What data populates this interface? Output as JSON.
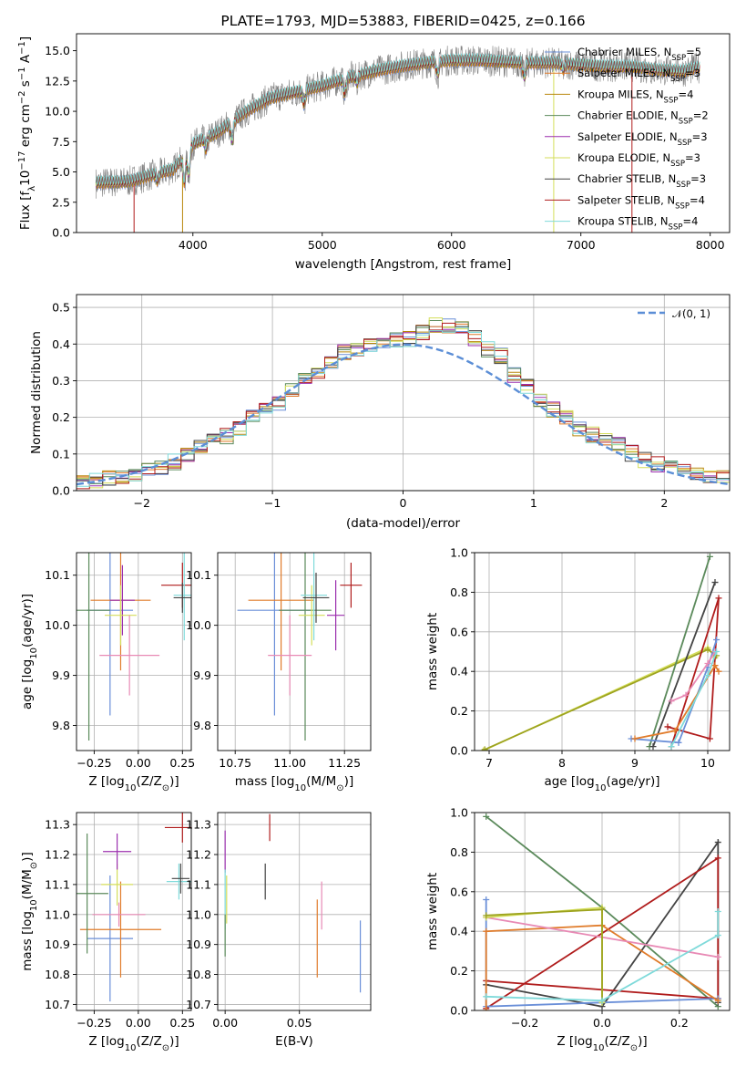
{
  "chart_data": [
    {
      "id": "spectrum",
      "type": "line",
      "title": "PLATE=1793, MJD=53883, FIBERID=0425, z=0.166",
      "xlabel": "wavelength [Angstrom, rest frame]",
      "ylabel_pre": "Flux [f",
      "ylabel_sub": "λ",
      "ylabel_mid": "10",
      "ylabel_sup1": "−17",
      "ylabel_mid2": " erg cm",
      "ylabel_sup2": "−2",
      "ylabel_mid3": " s",
      "ylabel_sup3": "−1",
      "ylabel_mid4": " A",
      "ylabel_sup4": "−1",
      "ylabel_end": "]",
      "xlim": [
        3100,
        8150
      ],
      "ylim": [
        0,
        16.4
      ],
      "xticks": [
        4000,
        5000,
        6000,
        7000,
        8000
      ],
      "yticks": [
        0.0,
        2.5,
        5.0,
        7.5,
        10.0,
        12.5,
        15.0
      ],
      "ytick_labels": [
        "0.0",
        "2.5",
        "5.0",
        "7.5",
        "10.0",
        "12.5",
        "15.0"
      ],
      "grid": false,
      "legend_position": "right",
      "data_color": "#808080",
      "continuum": {
        "x": [
          3250,
          3500,
          3700,
          3850,
          4000,
          4200,
          4400,
          4600,
          4800,
          5000,
          5200,
          5400,
          5600,
          5800,
          6000,
          6200,
          6400,
          6600,
          6800,
          7000,
          7200,
          7400,
          7600,
          7800,
          7900
        ],
        "y": [
          4.1,
          4.2,
          4.8,
          5.2,
          7.3,
          8.3,
          9.9,
          11.1,
          11.6,
          12.1,
          12.8,
          13.3,
          13.7,
          14.0,
          14.2,
          14.2,
          14.1,
          14.0,
          14.0,
          13.8,
          13.7,
          13.7,
          13.4,
          13.3,
          13.6
        ]
      },
      "series": [
        {
          "name": "Chabrier MILES, N",
          "sub": "SSP",
          "suffix": "=5",
          "color": "#6a8fd8"
        },
        {
          "name": "Salpeter MILES, N",
          "sub": "SSP",
          "suffix": "=3",
          "color": "#e07b2a"
        },
        {
          "name": "Kroupa MILES, N",
          "sub": "SSP",
          "suffix": "=4",
          "color": "#b8860b"
        },
        {
          "name": "Chabrier ELODIE, N",
          "sub": "SSP",
          "suffix": "=2",
          "color": "#5b8a5b"
        },
        {
          "name": "Salpeter ELODIE, N",
          "sub": "SSP",
          "suffix": "=3",
          "color": "#9b2fae"
        },
        {
          "name": "Kroupa ELODIE, N",
          "sub": "SSP",
          "suffix": "=3",
          "color": "#d4de5a"
        },
        {
          "name": "Chabrier STELIB, N",
          "sub": "SSP",
          "suffix": "=3",
          "color": "#444444"
        },
        {
          "name": "Salpeter STELIB, N",
          "sub": "SSP",
          "suffix": "=4",
          "color": "#b01c1c"
        },
        {
          "name": "Kroupa STELIB, N",
          "sub": "SSP",
          "suffix": "=4",
          "color": "#7fdada"
        }
      ]
    },
    {
      "id": "residuals",
      "type": "histogram",
      "xlabel": "(data-model)/error",
      "ylabel": "Normed distribution",
      "xlim": [
        -2.5,
        2.5
      ],
      "ylim": [
        0,
        0.535
      ],
      "xticks": [
        -2,
        -1,
        0,
        1,
        2
      ],
      "xtick_labels": [
        "−2",
        "−1",
        "0",
        "1",
        "2"
      ],
      "yticks": [
        0.0,
        0.1,
        0.2,
        0.3,
        0.4,
        0.5
      ],
      "ytick_labels": [
        "0.0",
        "0.1",
        "0.2",
        "0.3",
        "0.4",
        "0.5"
      ],
      "grid": true,
      "legend_position": "top-right",
      "gaussian_label": "𝒩(0, 1)",
      "gaussian_color": "#5b8ed6",
      "bin_width": 0.1,
      "series_colors": [
        "#6a8fd8",
        "#e07b2a",
        "#b8860b",
        "#5b8a5b",
        "#9b2fae",
        "#d4de5a",
        "#444444",
        "#b01c1c",
        "#7fdada"
      ],
      "base_profile": [
        0.022,
        0.03,
        0.036,
        0.042,
        0.046,
        0.052,
        0.065,
        0.078,
        0.095,
        0.115,
        0.135,
        0.15,
        0.17,
        0.205,
        0.222,
        0.238,
        0.27,
        0.298,
        0.32,
        0.352,
        0.378,
        0.385,
        0.395,
        0.4,
        0.412,
        0.415,
        0.432,
        0.452,
        0.448,
        0.44,
        0.418,
        0.385,
        0.368,
        0.318,
        0.285,
        0.248,
        0.222,
        0.198,
        0.172,
        0.152,
        0.138,
        0.128,
        0.102,
        0.085,
        0.072,
        0.06,
        0.052,
        0.046,
        0.04,
        0.032
      ]
    },
    {
      "id": "age_vs_Z",
      "type": "errorbar",
      "xlabel_pre": "Z [log",
      "xlabel_sub": "10",
      "xlabel_mid": "(Z/Z",
      "xlabel_sub2": "⊙",
      "xlabel_end": ")]",
      "ylabel_pre": "age  [log",
      "ylabel_sub": "10",
      "ylabel_mid": "(age/yr)]",
      "xlim": [
        -0.35,
        0.3
      ],
      "ylim": [
        9.75,
        10.145
      ],
      "xticks": [
        -0.25,
        0.0,
        0.25
      ],
      "xtick_labels": [
        "−0.25",
        "0.00",
        "0.25"
      ],
      "yticks": [
        9.8,
        9.9,
        10.0,
        10.1
      ],
      "ytick_labels": [
        "9.8",
        "9.9",
        "10.0",
        "10.1"
      ],
      "grid": true,
      "points": [
        {
          "x": -0.16,
          "y": 10.03,
          "xerr": 0.13,
          "yerr": 0.21,
          "color": "#6a8fd8"
        },
        {
          "x": -0.1,
          "y": 10.05,
          "xerr": 0.17,
          "yerr": 0.14,
          "color": "#e07b2a"
        },
        {
          "x": -0.09,
          "y": 10.05,
          "xerr": 0.07,
          "yerr": 0.07,
          "color": "#9b2fae"
        },
        {
          "x": -0.1,
          "y": 10.02,
          "xerr": 0.09,
          "yerr": 0.06,
          "color": "#d4de5a"
        },
        {
          "x": -0.28,
          "y": 10.03,
          "xerr": 0.12,
          "yerr": 0.26,
          "color": "#5b8a5b"
        },
        {
          "x": -0.05,
          "y": 9.94,
          "xerr": 0.17,
          "yerr": 0.08,
          "color": "#e88ab5"
        },
        {
          "x": 0.25,
          "y": 10.08,
          "xerr": 0.12,
          "yerr": 0.045,
          "color": "#b01c1c"
        },
        {
          "x": 0.26,
          "y": 10.06,
          "xerr": 0.06,
          "yerr": 0.09,
          "color": "#7fdada"
        },
        {
          "x": 0.25,
          "y": 10.055,
          "xerr": 0.05,
          "yerr": 0.03,
          "color": "#444444"
        }
      ]
    },
    {
      "id": "age_vs_mass",
      "type": "errorbar",
      "xlabel_pre": "mass [log",
      "xlabel_sub": "10",
      "xlabel_mid": "(M/M",
      "xlabel_sub2": "⊙",
      "xlabel_end": ")]",
      "xlim": [
        10.67,
        11.37
      ],
      "ylim": [
        9.75,
        10.145
      ],
      "xticks": [
        10.75,
        11.0,
        11.25
      ],
      "xtick_labels": [
        "10.75",
        "11.00",
        "11.25"
      ],
      "yticks": [
        9.8,
        9.9,
        10.0,
        10.1
      ],
      "ytick_labels": [
        "9.8",
        "9.9",
        "10.0",
        "10.1"
      ],
      "grid": true,
      "points": [
        {
          "x": 10.93,
          "y": 10.03,
          "xerr": 0.17,
          "yerr": 0.21,
          "color": "#6a8fd8"
        },
        {
          "x": 10.96,
          "y": 10.05,
          "xerr": 0.15,
          "yerr": 0.14,
          "color": "#e07b2a"
        },
        {
          "x": 11.07,
          "y": 10.03,
          "xerr": 0.12,
          "yerr": 0.26,
          "color": "#5b8a5b"
        },
        {
          "x": 11.0,
          "y": 9.94,
          "xerr": 0.1,
          "yerr": 0.08,
          "color": "#e88ab5"
        },
        {
          "x": 11.1,
          "y": 10.02,
          "xerr": 0.06,
          "yerr": 0.06,
          "color": "#d4de5a"
        },
        {
          "x": 11.11,
          "y": 10.06,
          "xerr": 0.06,
          "yerr": 0.09,
          "color": "#7fdada"
        },
        {
          "x": 11.12,
          "y": 10.055,
          "xerr": 0.06,
          "yerr": 0.05,
          "color": "#444444"
        },
        {
          "x": 11.21,
          "y": 10.02,
          "xerr": 0.04,
          "yerr": 0.07,
          "color": "#9b2fae"
        },
        {
          "x": 11.28,
          "y": 10.08,
          "xerr": 0.05,
          "yerr": 0.045,
          "color": "#b01c1c"
        }
      ]
    },
    {
      "id": "massweight_vs_age",
      "type": "line",
      "xlabel_pre": "age  [log",
      "xlabel_sub": "10",
      "xlabel_mid": "(age/yr)]",
      "ylabel": "mass weight",
      "xlim": [
        6.8,
        10.3
      ],
      "ylim": [
        0,
        1
      ],
      "xticks": [
        7,
        8,
        9,
        10
      ],
      "yticks": [
        0.0,
        0.2,
        0.4,
        0.6,
        0.8,
        1.0
      ],
      "ytick_labels": [
        "0.0",
        "0.2",
        "0.4",
        "0.6",
        "0.8",
        "1.0"
      ],
      "grid": true,
      "series": [
        {
          "color": "#d4de5a",
          "x": [
            6.92,
            10.0,
            10.1
          ],
          "y": [
            0.0,
            0.52,
            0.47
          ]
        },
        {
          "color": "#9da31f",
          "x": [
            6.94,
            10.0,
            10.12
          ],
          "y": [
            0.005,
            0.51,
            0.48
          ]
        },
        {
          "color": "#5b8a5b",
          "x": [
            9.2,
            10.03
          ],
          "y": [
            0.02,
            0.98
          ]
        },
        {
          "color": "#444444",
          "x": [
            9.25,
            10.1
          ],
          "y": [
            0.02,
            0.85
          ]
        },
        {
          "color": "#b01c1c",
          "x": [
            9.45,
            10.03,
            10.15,
            9.5
          ],
          "y": [
            0.12,
            0.06,
            0.77,
            0.02
          ]
        },
        {
          "color": "#6a8fd8",
          "x": [
            8.95,
            9.6,
            10.0,
            10.12
          ],
          "y": [
            0.06,
            0.04,
            0.42,
            0.56
          ]
        },
        {
          "color": "#e07b2a",
          "x": [
            9.0,
            9.55,
            10.1,
            10.15
          ],
          "y": [
            0.06,
            0.1,
            0.43,
            0.4
          ]
        },
        {
          "color": "#e88ab5",
          "x": [
            9.5,
            9.7,
            10.0,
            10.1
          ],
          "y": [
            0.25,
            0.28,
            0.44,
            0.5
          ]
        },
        {
          "color": "#7fdada",
          "x": [
            9.5,
            10.0,
            10.12
          ],
          "y": [
            0.02,
            0.38,
            0.5
          ]
        }
      ]
    },
    {
      "id": "mass_vs_Z",
      "type": "errorbar",
      "xlabel_pre": "Z [log",
      "xlabel_sub": "10",
      "xlabel_mid": "(Z/Z",
      "xlabel_sub2": "⊙",
      "xlabel_end": ")]",
      "ylabel_pre": "mass [log",
      "ylabel_sub": "10",
      "ylabel_mid": "(M/M",
      "ylabel_sub2": "⊙",
      "ylabel_end": ")]",
      "xlim": [
        -0.35,
        0.3
      ],
      "ylim": [
        10.68,
        11.34
      ],
      "xticks": [
        -0.25,
        0.0,
        0.25
      ],
      "xtick_labels": [
        "−0.25",
        "0.00",
        "0.25"
      ],
      "yticks": [
        10.7,
        10.8,
        10.9,
        11.0,
        11.1,
        11.2,
        11.3
      ],
      "ytick_labels": [
        "10.7",
        "10.8",
        "10.9",
        "11.0",
        "11.1",
        "11.2",
        "11.3"
      ],
      "grid": true,
      "points": [
        {
          "x": -0.16,
          "y": 10.92,
          "xerr": 0.13,
          "yerr": 0.21,
          "color": "#6a8fd8"
        },
        {
          "x": -0.1,
          "y": 10.95,
          "xerr": 0.23,
          "yerr": 0.16,
          "color": "#e07b2a"
        },
        {
          "x": -0.29,
          "y": 11.07,
          "xerr": 0.12,
          "yerr": 0.2,
          "color": "#5b8a5b"
        },
        {
          "x": -0.11,
          "y": 11.0,
          "xerr": 0.15,
          "yerr": 0.04,
          "color": "#e88ab5"
        },
        {
          "x": -0.12,
          "y": 11.1,
          "xerr": 0.09,
          "yerr": 0.07,
          "color": "#d4de5a"
        },
        {
          "x": -0.12,
          "y": 11.21,
          "xerr": 0.08,
          "yerr": 0.06,
          "color": "#9b2fae"
        },
        {
          "x": 0.25,
          "y": 11.29,
          "xerr": 0.1,
          "yerr": 0.05,
          "color": "#b01c1c"
        },
        {
          "x": 0.23,
          "y": 11.11,
          "xerr": 0.07,
          "yerr": 0.06,
          "color": "#7fdada"
        },
        {
          "x": 0.24,
          "y": 11.12,
          "xerr": 0.05,
          "yerr": 0.05,
          "color": "#444444"
        }
      ]
    },
    {
      "id": "mass_vs_ebv",
      "type": "errorbar",
      "xlabel": "E(B-V)",
      "xlim": [
        -0.005,
        0.098
      ],
      "ylim": [
        10.68,
        11.34
      ],
      "xticks": [
        0.0,
        0.05
      ],
      "xtick_labels": [
        "0.00",
        "0.05"
      ],
      "yticks": [
        10.7,
        10.8,
        10.9,
        11.0,
        11.1,
        11.2,
        11.3
      ],
      "ytick_labels": [
        "10.7",
        "10.8",
        "10.9",
        "11.0",
        "11.1",
        "11.2",
        "11.3"
      ],
      "grid": true,
      "points": [
        {
          "x": 0.0,
          "y": 11.21,
          "xerr": 0.0,
          "yerr": 0.07,
          "color": "#9b2fae"
        },
        {
          "x": 0.0,
          "y": 11.05,
          "xerr": 0.0,
          "yerr": 0.1,
          "color": "#7fdada"
        },
        {
          "x": 0.0,
          "y": 10.93,
          "xerr": 0.0,
          "yerr": 0.07,
          "color": "#5b8a5b"
        },
        {
          "x": 0.001,
          "y": 11.05,
          "xerr": 0.0,
          "yerr": 0.08,
          "color": "#d4de5a"
        },
        {
          "x": 0.027,
          "y": 11.11,
          "xerr": 0.0,
          "yerr": 0.06,
          "color": "#444444"
        },
        {
          "x": 0.03,
          "y": 11.29,
          "xerr": 0.0,
          "yerr": 0.045,
          "color": "#b01c1c"
        },
        {
          "x": 0.062,
          "y": 10.92,
          "xerr": 0.0,
          "yerr": 0.13,
          "color": "#e07b2a"
        },
        {
          "x": 0.065,
          "y": 11.03,
          "xerr": 0.0,
          "yerr": 0.08,
          "color": "#e88ab5"
        },
        {
          "x": 0.091,
          "y": 10.86,
          "xerr": 0.0,
          "yerr": 0.12,
          "color": "#6a8fd8"
        }
      ]
    },
    {
      "id": "massweight_vs_Z",
      "type": "line",
      "xlabel_pre": "Z [log",
      "xlabel_sub": "10",
      "xlabel_mid": "(Z/Z",
      "xlabel_sub2": "⊙",
      "xlabel_end": ")]",
      "ylabel": "mass weight",
      "xlim": [
        -0.33,
        0.33
      ],
      "ylim": [
        0,
        1
      ],
      "xticks": [
        -0.2,
        0.0,
        0.2
      ],
      "xtick_labels": [
        "−0.2",
        "0.0",
        "0.2"
      ],
      "yticks": [
        0.0,
        0.2,
        0.4,
        0.6,
        0.8,
        1.0
      ],
      "ytick_labels": [
        "0.0",
        "0.2",
        "0.4",
        "0.6",
        "0.8",
        "1.0"
      ],
      "grid": true,
      "series": [
        {
          "color": "#5b8a5b",
          "x": [
            -0.3,
            0.0,
            0.3
          ],
          "y": [
            0.98,
            0.52,
            0.02
          ]
        },
        {
          "color": "#444444",
          "x": [
            -0.3,
            0.0,
            0.3,
            0.3
          ],
          "y": [
            0.13,
            0.02,
            0.85,
            0.04
          ]
        },
        {
          "color": "#b01c1c",
          "x": [
            -0.3,
            0.3,
            0.3,
            -0.3
          ],
          "y": [
            0.01,
            0.77,
            0.06,
            0.15
          ]
        },
        {
          "color": "#6a8fd8",
          "x": [
            -0.3,
            -0.3,
            0.0,
            0.3
          ],
          "y": [
            0.56,
            0.02,
            0.04,
            0.06
          ]
        },
        {
          "color": "#e07b2a",
          "x": [
            -0.3,
            -0.3,
            0.0,
            0.3
          ],
          "y": [
            0.0,
            0.4,
            0.43,
            0.05
          ]
        },
        {
          "color": "#e88ab5",
          "x": [
            -0.3,
            0.3
          ],
          "y": [
            0.47,
            0.27
          ]
        },
        {
          "color": "#d4de5a",
          "x": [
            -0.3,
            0.0,
            0.0
          ],
          "y": [
            0.47,
            0.52,
            0.04
          ]
        },
        {
          "color": "#9da31f",
          "x": [
            -0.3,
            0.0,
            0.0
          ],
          "y": [
            0.48,
            0.51,
            0.05
          ]
        },
        {
          "color": "#7fdada",
          "x": [
            -0.3,
            0.0,
            0.3,
            0.3
          ],
          "y": [
            0.07,
            0.05,
            0.38,
            0.5
          ]
        }
      ]
    }
  ]
}
